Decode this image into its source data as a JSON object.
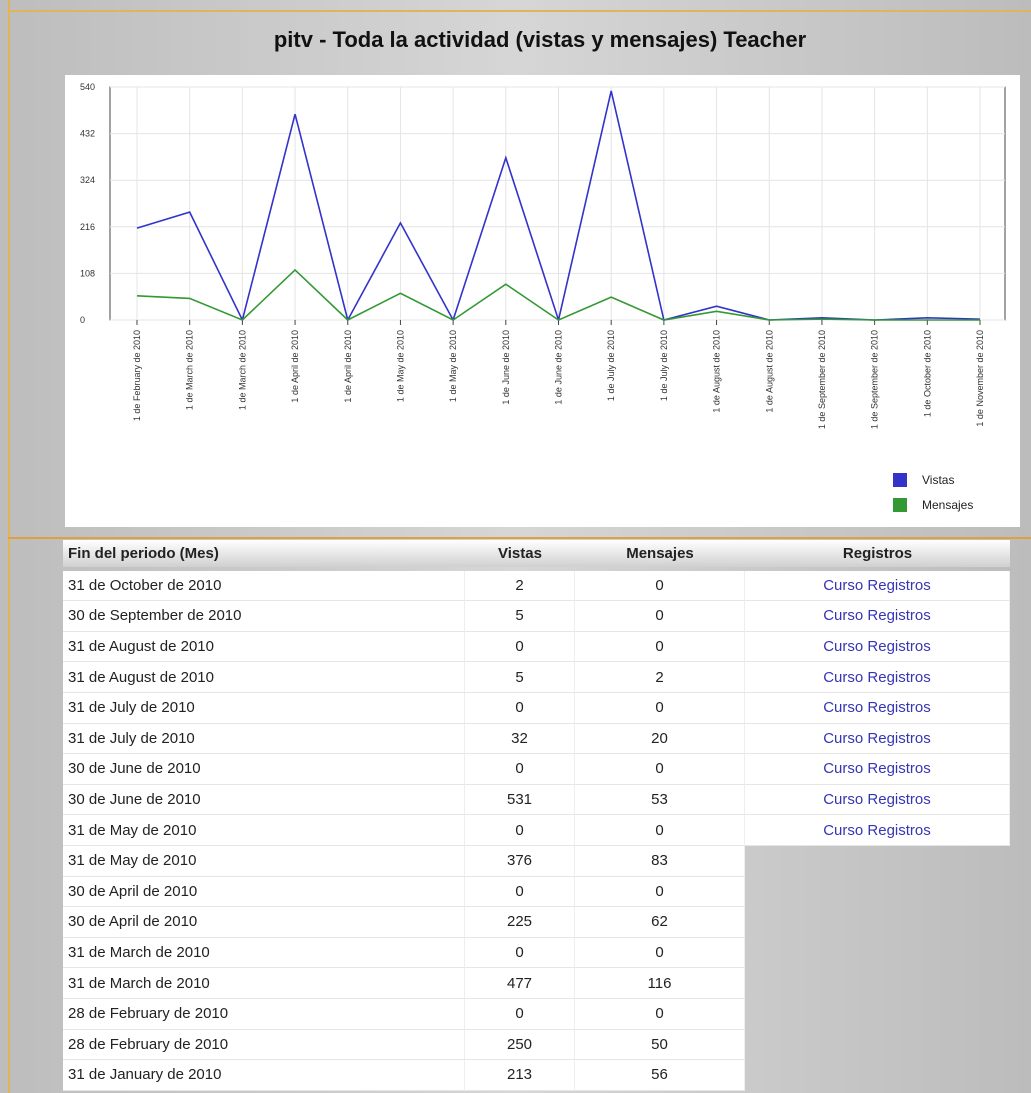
{
  "chart_data": {
    "type": "line",
    "title": "pitv - Toda la actividad (vistas y mensajes) Teacher",
    "categories": [
      "1 de February de 2010",
      "1 de March de 2010",
      "1 de March de 2010",
      "1 de April de 2010",
      "1 de April de 2010",
      "1 de May de 2010",
      "1 de May de 2010",
      "1 de June de 2010",
      "1 de June de 2010",
      "1 de July de 2010",
      "1 de July de 2010",
      "1 de August de 2010",
      "1 de August de 2010",
      "1 de September de 2010",
      "1 de September de 2010",
      "1 de October de 2010",
      "1 de November de 2010"
    ],
    "series": [
      {
        "name": "Vistas",
        "color": "#3333cc",
        "values": [
          213,
          250,
          0,
          477,
          0,
          225,
          0,
          376,
          0,
          531,
          0,
          32,
          0,
          5,
          0,
          5,
          2
        ]
      },
      {
        "name": "Mensajes",
        "color": "#339933",
        "values": [
          56,
          50,
          0,
          116,
          0,
          62,
          0,
          83,
          0,
          53,
          0,
          20,
          0,
          2,
          0,
          0,
          0
        ]
      }
    ],
    "ylim": [
      0,
      540
    ],
    "yticks": [
      0,
      108,
      216,
      324,
      432,
      540
    ],
    "grid": true,
    "legend": "bottom-right"
  },
  "table": {
    "header": [
      "Fin del periodo (Mes)",
      "Vistas",
      "Mensajes",
      "Registros"
    ],
    "rows": [
      [
        "31 de October de 2010",
        2,
        0,
        "Curso Registros"
      ],
      [
        "30 de September de 2010",
        5,
        0,
        "Curso Registros"
      ],
      [
        "31 de August de 2010",
        0,
        0,
        "Curso Registros"
      ],
      [
        "31 de August de 2010",
        5,
        2,
        "Curso Registros"
      ],
      [
        "31 de July de 2010",
        0,
        0,
        "Curso Registros"
      ],
      [
        "31 de July de 2010",
        32,
        20,
        "Curso Registros"
      ],
      [
        "30 de June de 2010",
        0,
        0,
        "Curso Registros"
      ],
      [
        "30 de June de 2010",
        531,
        53,
        "Curso Registros"
      ],
      [
        "31 de May de 2010",
        0,
        0,
        "Curso Registros"
      ],
      [
        "31 de May de 2010",
        376,
        83
      ],
      [
        "30 de April de 2010",
        0,
        0
      ],
      [
        "30 de April de 2010",
        225,
        62
      ],
      [
        "31 de March de 2010",
        0,
        0
      ],
      [
        "31 de March de 2010",
        477,
        116
      ],
      [
        "28 de February de 2010",
        0,
        0
      ],
      [
        "28 de February de 2010",
        250,
        50
      ],
      [
        "31 de January de 2010",
        213,
        56
      ]
    ]
  }
}
